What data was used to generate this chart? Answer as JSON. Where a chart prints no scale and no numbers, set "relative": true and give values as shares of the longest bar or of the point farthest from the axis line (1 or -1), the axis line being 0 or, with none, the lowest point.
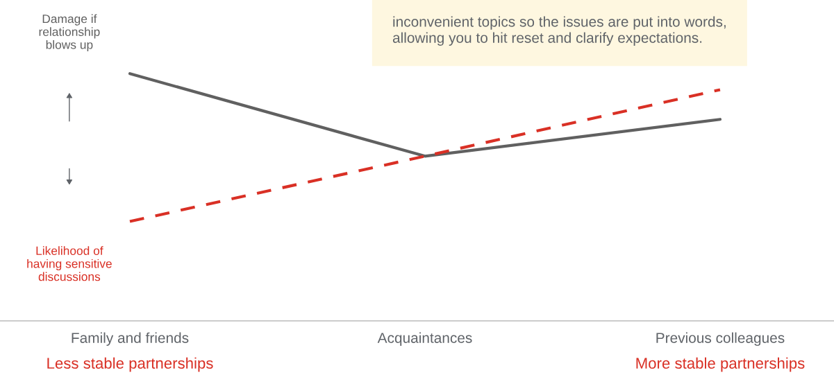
{
  "chart_data": {
    "type": "line",
    "relative": true,
    "categories": [
      "Family and friends",
      "Acquaintances",
      "Previous colleagues"
    ],
    "series": [
      {
        "name": "Damage if relationship blows up",
        "color": "#606060",
        "line_style": "solid",
        "values": [
          1,
          0.666,
          0.815
        ]
      },
      {
        "name": "Likelihood of having sensitive discussions",
        "color": "#d93025",
        "line_style": "dashed",
        "values": [
          0.402,
          0.666,
          0.935
        ]
      }
    ],
    "annotations": [
      "inconvenient topics so the issues are put into words,\nallowing you to hit reset and clarify expectations.",
      "Less stable partnerships",
      "More stable partnerships"
    ],
    "grid": false,
    "legend": false
  }
}
